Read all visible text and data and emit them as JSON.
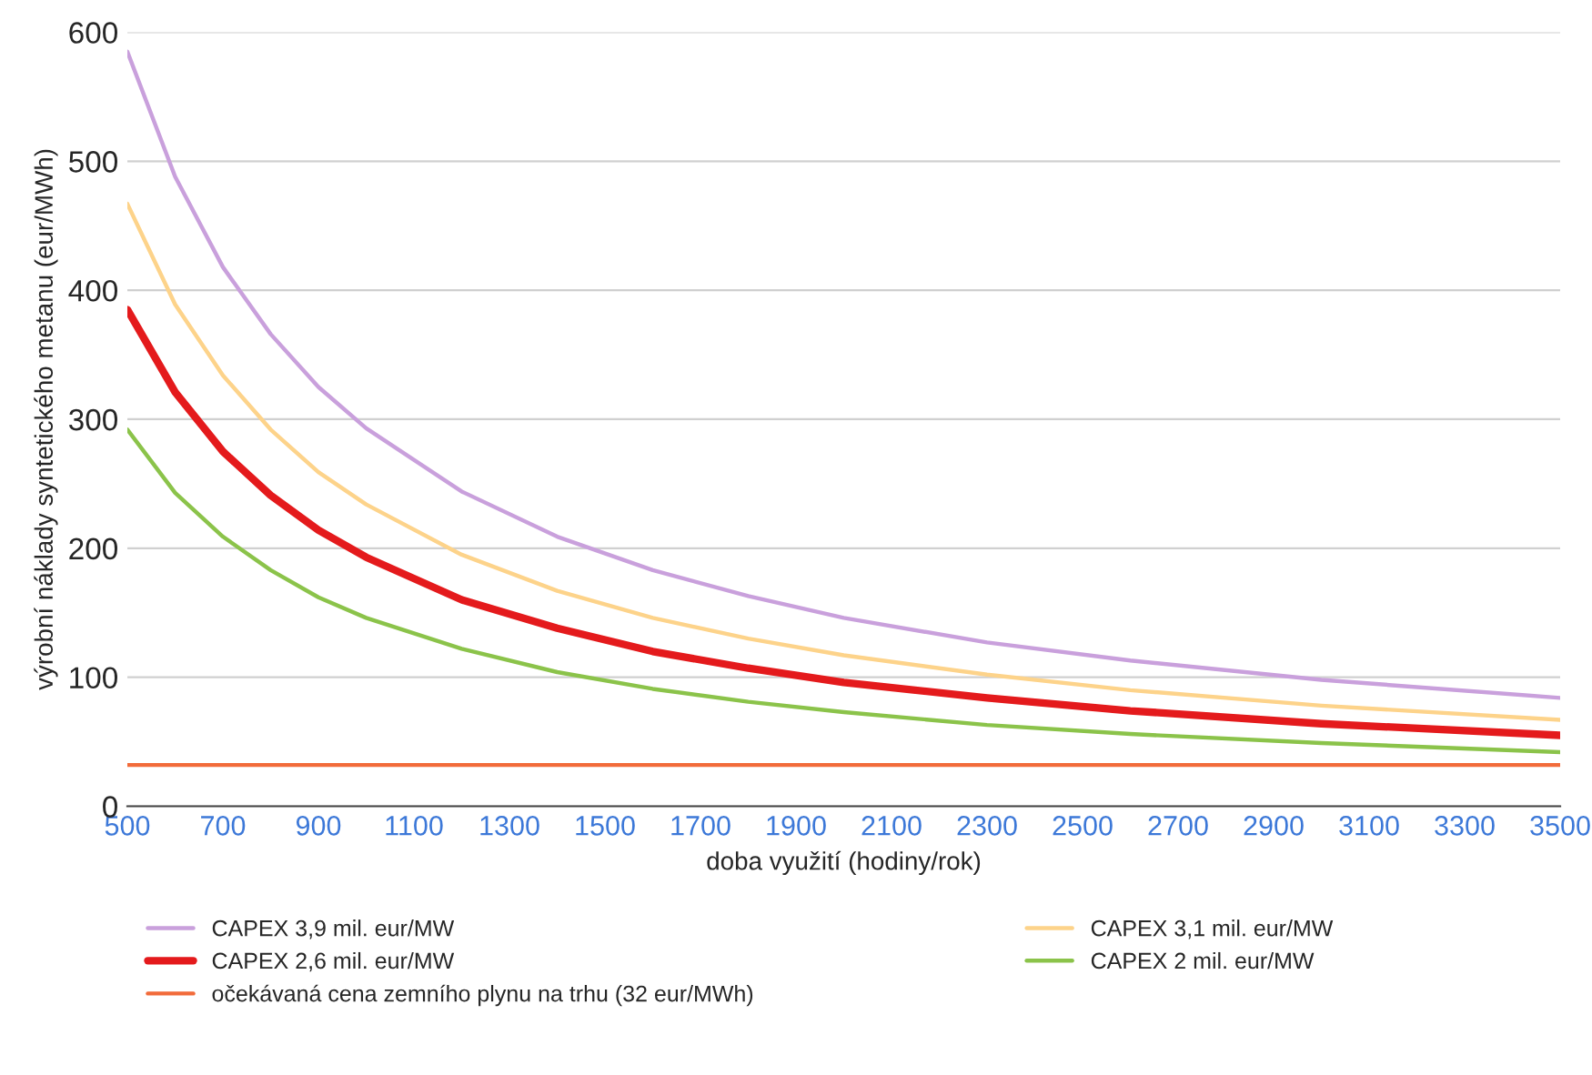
{
  "chart_data": {
    "type": "line",
    "xlabel": "doba využití (hodiny/rok)",
    "ylabel": "výrobní náklady syntetického metanu (eur/MWh)",
    "x": [
      500,
      600,
      700,
      800,
      900,
      1000,
      1200,
      1400,
      1600,
      1800,
      2000,
      2300,
      2600,
      3000,
      3500
    ],
    "series": [
      {
        "name": "CAPEX 3,9 mil. eur/MW",
        "color": "#c9a0dc",
        "values": [
          585,
          488,
          418,
          366,
          325,
          293,
          244,
          209,
          183,
          163,
          146,
          127,
          113,
          98,
          84
        ]
      },
      {
        "name": "CAPEX 3,1 mil. eur/MW",
        "color": "#fdd38a",
        "values": [
          467,
          389,
          334,
          292,
          259,
          234,
          195,
          167,
          146,
          130,
          117,
          102,
          90,
          78,
          67
        ]
      },
      {
        "name": "CAPEX 2,6 mil. eur/MW",
        "color": "#e41a1c",
        "values": [
          385,
          321,
          275,
          241,
          214,
          193,
          160,
          138,
          120,
          107,
          96,
          84,
          74,
          64,
          55
        ]
      },
      {
        "name": "CAPEX 2 mil. eur/MW",
        "color": "#8bc34a",
        "values": [
          292,
          243,
          209,
          183,
          162,
          146,
          122,
          104,
          91,
          81,
          73,
          63,
          56,
          49,
          42
        ]
      },
      {
        "name": "očekávaná cena zemního plynu na trhu (32 eur/MWh)",
        "color": "#f26b3a",
        "x": [
          500,
          3500
        ],
        "values": [
          32,
          32
        ]
      }
    ],
    "xlim": [
      500,
      3500
    ],
    "xticks": [
      500,
      700,
      900,
      1100,
      1300,
      1500,
      1700,
      1900,
      2100,
      2300,
      2500,
      2700,
      2900,
      3100,
      3300,
      3500
    ],
    "ylim": [
      0,
      600
    ],
    "yticks": [
      0,
      100,
      200,
      300,
      400,
      500,
      600
    ],
    "grid": "y",
    "legend": "bottom",
    "marker": "none",
    "line_style": "solid"
  }
}
